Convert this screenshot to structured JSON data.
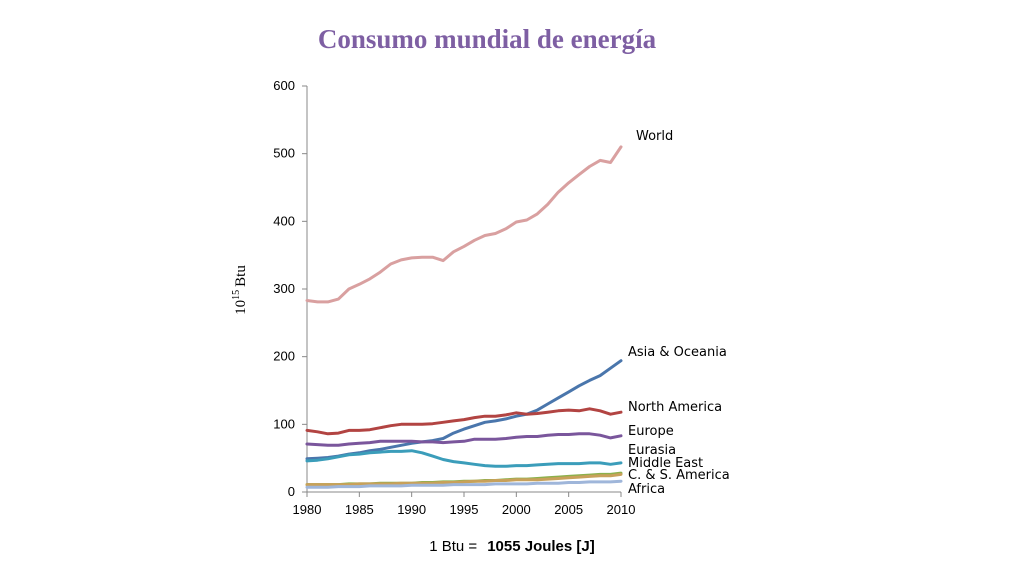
{
  "title": "Consumo mundial de energía",
  "footnote": {
    "prefix": "1 Btu =",
    "value": "1055 Joules [J]"
  },
  "chart_data": {
    "type": "line",
    "title": "Consumo mundial de energía",
    "ylabel_base": "10",
    "ylabel_exp": "15",
    "ylabel_unit": "Btu",
    "xlim": [
      1980,
      2010
    ],
    "ylim": [
      0,
      600
    ],
    "xticks": [
      1980,
      1985,
      1990,
      1995,
      2000,
      2005,
      2010
    ],
    "yticks": [
      0,
      100,
      200,
      300,
      400,
      500,
      600
    ],
    "grid": false,
    "legend": "inline-right",
    "x": [
      1980,
      1981,
      1982,
      1983,
      1984,
      1985,
      1986,
      1987,
      1988,
      1989,
      1990,
      1991,
      1992,
      1993,
      1994,
      1995,
      1996,
      1997,
      1998,
      1999,
      2000,
      2001,
      2002,
      2003,
      2004,
      2005,
      2006,
      2007,
      2008,
      2009,
      2010
    ],
    "series": [
      {
        "name": "World",
        "color": "#D9A0A0",
        "values": [
          283,
          281,
          281,
          285,
          300,
          307,
          315,
          325,
          337,
          343,
          346,
          347,
          347,
          342,
          355,
          363,
          372,
          379,
          382,
          389,
          399,
          402,
          411,
          425,
          443,
          457,
          469,
          481,
          490,
          487,
          510
        ]
      },
      {
        "name": "Asia & Oceania",
        "color": "#4A76AC",
        "values": [
          49,
          50,
          51,
          53,
          56,
          58,
          61,
          63,
          66,
          69,
          72,
          74,
          76,
          79,
          87,
          93,
          98,
          103,
          105,
          108,
          112,
          115,
          121,
          130,
          139,
          148,
          157,
          165,
          172,
          183,
          194
        ]
      },
      {
        "name": "North America",
        "color": "#B24442",
        "values": [
          91,
          89,
          86,
          87,
          91,
          91,
          92,
          95,
          98,
          100,
          100,
          100,
          101,
          103,
          105,
          107,
          110,
          112,
          112,
          114,
          117,
          115,
          116,
          118,
          120,
          121,
          120,
          123,
          120,
          115,
          118
        ]
      },
      {
        "name": "Europe",
        "color": "#7A569C",
        "values": [
          71,
          70,
          69,
          69,
          71,
          72,
          73,
          75,
          75,
          75,
          75,
          74,
          74,
          73,
          74,
          75,
          78,
          78,
          78,
          79,
          81,
          82,
          82,
          84,
          85,
          85,
          86,
          86,
          84,
          80,
          83
        ]
      },
      {
        "name": "Eurasia",
        "color": "#3B9DBA",
        "values": [
          46,
          47,
          49,
          52,
          55,
          56,
          58,
          59,
          60,
          60,
          61,
          58,
          53,
          48,
          45,
          43,
          41,
          39,
          38,
          38,
          39,
          39,
          40,
          41,
          42,
          42,
          42,
          43,
          43,
          41,
          43
        ]
      },
      {
        "name": "Middle East",
        "color": "#8BB04B",
        "values": [
          11,
          11,
          11,
          11,
          12,
          12,
          12,
          13,
          13,
          13,
          13,
          14,
          14,
          15,
          15,
          16,
          16,
          17,
          17,
          18,
          19,
          19,
          20,
          21,
          22,
          23,
          24,
          25,
          26,
          26,
          28
        ]
      },
      {
        "name": "C. & S. America",
        "color": "#C8A15A",
        "values": [
          11,
          11,
          11,
          11,
          11,
          12,
          12,
          12,
          12,
          13,
          13,
          13,
          13,
          14,
          14,
          15,
          16,
          16,
          17,
          17,
          18,
          18,
          18,
          19,
          20,
          21,
          22,
          23,
          24,
          24,
          26
        ]
      },
      {
        "name": "Africa",
        "color": "#9FB6DA",
        "values": [
          7,
          7,
          7,
          8,
          8,
          8,
          9,
          9,
          9,
          9,
          10,
          10,
          10,
          10,
          11,
          11,
          11,
          11,
          12,
          12,
          12,
          12,
          13,
          13,
          13,
          14,
          14,
          15,
          15,
          15,
          16
        ]
      }
    ]
  }
}
